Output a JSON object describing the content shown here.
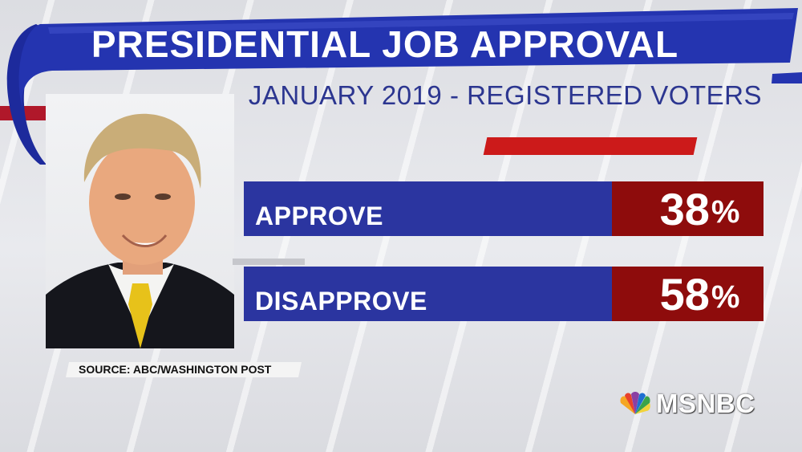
{
  "header": {
    "title": "PRESIDENTIAL JOB APPROVAL",
    "subtitle": "JANUARY 2019 - REGISTERED VOTERS"
  },
  "colors": {
    "banner_blue": "#2434b0",
    "bar_blue": "#2b35a0",
    "value_red": "#8e0c0c",
    "accent_red": "#cc1a1a",
    "subtitle_blue": "#2c3690"
  },
  "chart_data": {
    "type": "bar",
    "title": "PRESIDENTIAL JOB APPROVAL",
    "subtitle": "JANUARY 2019 - REGISTERED VOTERS",
    "categories": [
      "APPROVE",
      "DISAPPROVE"
    ],
    "values": [
      38,
      58
    ],
    "value_labels": [
      "38",
      "58"
    ],
    "unit": "%"
  },
  "source": "SOURCE: ABC/WASHINGTON POST",
  "logo": {
    "text": "MSNBC",
    "icon": "nbc-peacock-icon"
  }
}
